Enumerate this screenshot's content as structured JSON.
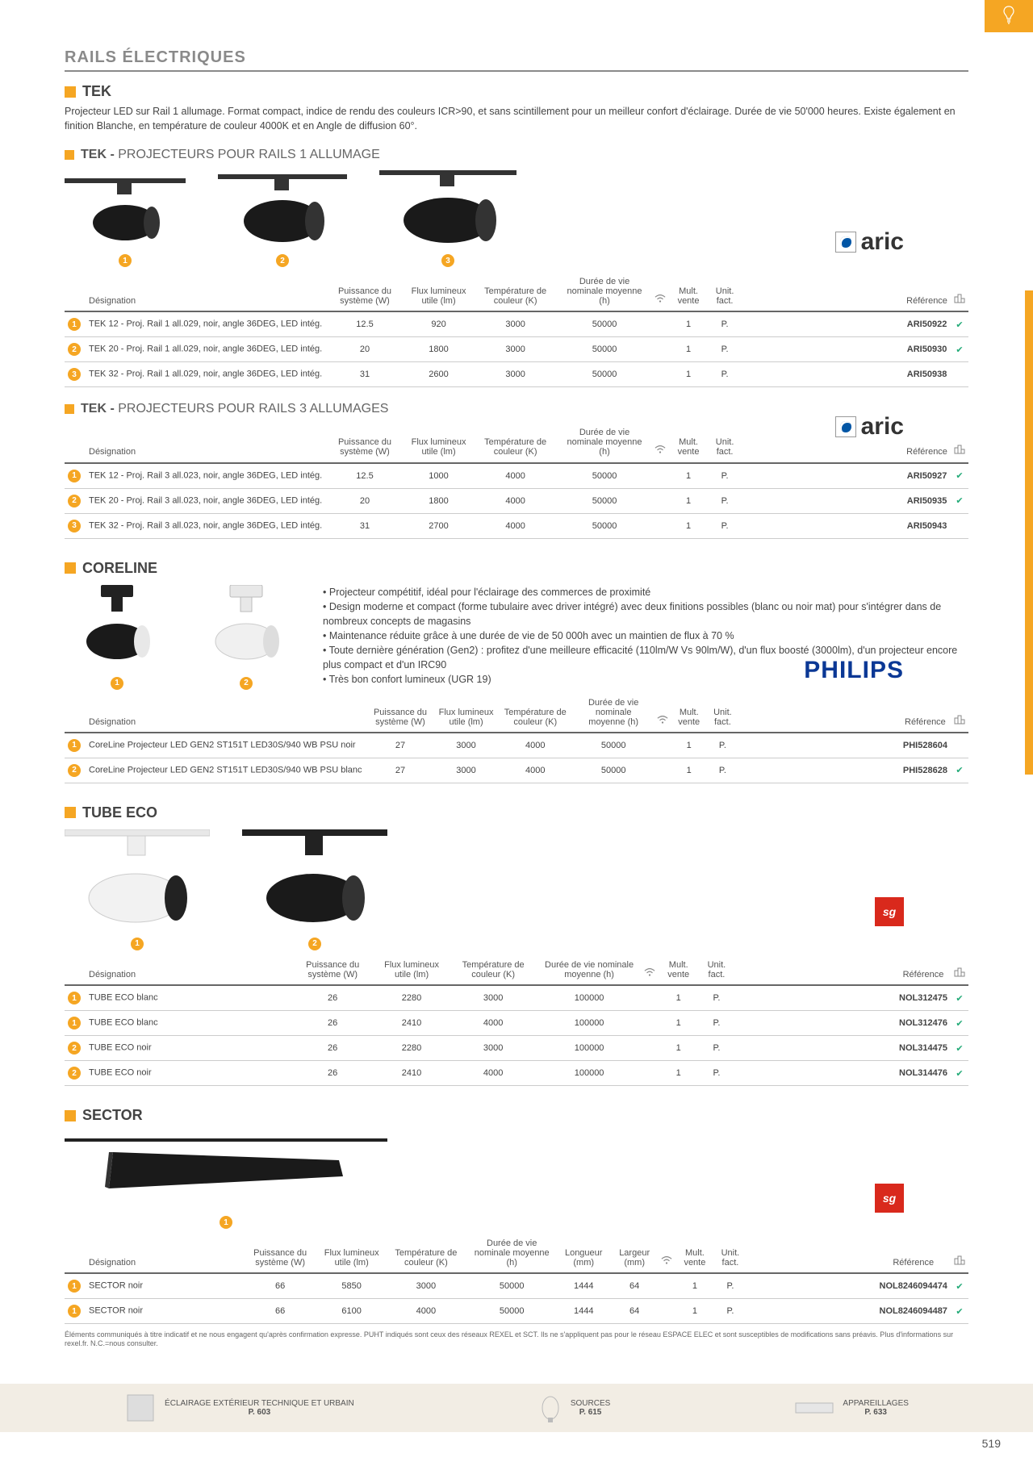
{
  "colors": {
    "accent": "#f5a623",
    "text": "#3a3a3a",
    "line": "#cccccc",
    "philips": "#0b3895",
    "sg": "#d9291c"
  },
  "page_number": "519",
  "header": "RAILS ÉLECTRIQUES",
  "tek": {
    "title": "TEK",
    "desc": "Projecteur LED sur Rail 1 allumage. Format compact, indice de rendu des couleurs ICR>90, et sans scintillement pour un meilleur confort d'éclairage. Durée de vie 50'000 heures. Existe également en finition Blanche, en température de couleur 4000K et en Angle de diffusion 60°."
  },
  "brand_aric": "aric",
  "brand_philips": "PHILIPS",
  "brand_sg": "sg",
  "table_headers": {
    "designation": "Désignation",
    "puissance": "Puissance du système (W)",
    "flux": "Flux lumineux utile (lm)",
    "temp": "Température de couleur (K)",
    "duree": "Durée de vie nominale moyenne (h)",
    "mult": "Mult. vente",
    "unit": "Unit. fact.",
    "ref": "Référence",
    "longueur": "Longueur (mm)",
    "largeur": "Largeur (mm)"
  },
  "tek1": {
    "title_strong": "TEK -",
    "title_rest": "PROJECTEURS POUR RAILS 1 ALLUMAGE",
    "rows": [
      {
        "n": "1",
        "d": "TEK 12 - Proj. Rail 1 all.029, noir, angle 36DEG, LED intég.",
        "p": "12.5",
        "f": "920",
        "t": "3000",
        "dur": "50000",
        "m": "1",
        "u": "P.",
        "ref": "ARI50922",
        "chk": "✔"
      },
      {
        "n": "2",
        "d": "TEK 20 - Proj. Rail 1 all.029, noir, angle 36DEG, LED intég.",
        "p": "20",
        "f": "1800",
        "t": "3000",
        "dur": "50000",
        "m": "1",
        "u": "P.",
        "ref": "ARI50930",
        "chk": "✔"
      },
      {
        "n": "3",
        "d": "TEK 32 - Proj. Rail 1 all.029, noir, angle 36DEG, LED intég.",
        "p": "31",
        "f": "2600",
        "t": "3000",
        "dur": "50000",
        "m": "1",
        "u": "P.",
        "ref": "ARI50938",
        "chk": ""
      }
    ]
  },
  "tek3": {
    "title_strong": "TEK -",
    "title_rest": "PROJECTEURS POUR RAILS 3 ALLUMAGES",
    "rows": [
      {
        "n": "1",
        "d": "TEK 12 - Proj. Rail 3 all.023, noir, angle 36DEG, LED intég.",
        "p": "12.5",
        "f": "1000",
        "t": "4000",
        "dur": "50000",
        "m": "1",
        "u": "P.",
        "ref": "ARI50927",
        "chk": "✔"
      },
      {
        "n": "2",
        "d": "TEK 20 - Proj. Rail 3 all.023, noir, angle 36DEG, LED intég.",
        "p": "20",
        "f": "1800",
        "t": "4000",
        "dur": "50000",
        "m": "1",
        "u": "P.",
        "ref": "ARI50935",
        "chk": "✔"
      },
      {
        "n": "3",
        "d": "TEK 32 - Proj. Rail 3 all.023, noir, angle 36DEG, LED intég.",
        "p": "31",
        "f": "2700",
        "t": "4000",
        "dur": "50000",
        "m": "1",
        "u": "P.",
        "ref": "ARI50943",
        "chk": ""
      }
    ]
  },
  "coreline": {
    "title": "CORELINE",
    "bullets": [
      "Projecteur compétitif, idéal pour l'éclairage des commerces de proximité",
      "Design moderne et compact (forme tubulaire avec driver intégré) avec deux finitions possibles (blanc ou noir mat) pour s'intégrer dans de nombreux concepts de magasins",
      "Maintenance réduite grâce à une durée de vie de 50 000h avec un maintien de flux à 70 %",
      "Toute dernière génération (Gen2) : profitez d'une meilleure efficacité (110lm/W Vs 90lm/W), d'un flux boosté (3000lm), d'un projecteur encore plus compact et d'un IRC90",
      "Très bon confort lumineux (UGR 19)"
    ],
    "rows": [
      {
        "n": "1",
        "d": "CoreLine Projecteur LED GEN2 ST151T LED30S/940 WB PSU noir",
        "p": "27",
        "f": "3000",
        "t": "4000",
        "dur": "50000",
        "m": "1",
        "u": "P.",
        "ref": "PHI528604",
        "chk": ""
      },
      {
        "n": "2",
        "d": "CoreLine Projecteur LED GEN2 ST151T LED30S/940 WB PSU blanc",
        "p": "27",
        "f": "3000",
        "t": "4000",
        "dur": "50000",
        "m": "1",
        "u": "P.",
        "ref": "PHI528628",
        "chk": "✔"
      }
    ]
  },
  "tubeeco": {
    "title": "TUBE ECO",
    "rows": [
      {
        "n": "1",
        "d": "TUBE ECO blanc",
        "p": "26",
        "f": "2280",
        "t": "3000",
        "dur": "100000",
        "m": "1",
        "u": "P.",
        "ref": "NOL312475",
        "chk": "✔"
      },
      {
        "n": "1",
        "d": "TUBE ECO blanc",
        "p": "26",
        "f": "2410",
        "t": "4000",
        "dur": "100000",
        "m": "1",
        "u": "P.",
        "ref": "NOL312476",
        "chk": "✔"
      },
      {
        "n": "2",
        "d": "TUBE ECO noir",
        "p": "26",
        "f": "2280",
        "t": "3000",
        "dur": "100000",
        "m": "1",
        "u": "P.",
        "ref": "NOL314475",
        "chk": "✔"
      },
      {
        "n": "2",
        "d": "TUBE ECO noir",
        "p": "26",
        "f": "2410",
        "t": "4000",
        "dur": "100000",
        "m": "1",
        "u": "P.",
        "ref": "NOL314476",
        "chk": "✔"
      }
    ]
  },
  "sector": {
    "title": "SECTOR",
    "rows": [
      {
        "n": "1",
        "d": "SECTOR noir",
        "p": "66",
        "f": "5850",
        "t": "3000",
        "dur": "50000",
        "lo": "1444",
        "la": "64",
        "m": "1",
        "u": "P.",
        "ref": "NOL8246094474",
        "chk": "✔"
      },
      {
        "n": "1",
        "d": "SECTOR noir",
        "p": "66",
        "f": "6100",
        "t": "4000",
        "dur": "50000",
        "lo": "1444",
        "la": "64",
        "m": "1",
        "u": "P.",
        "ref": "NOL8246094487",
        "chk": "✔"
      }
    ]
  },
  "footnote": "Éléments communiqués à titre indicatif et ne nous engagent qu'après confirmation expresse. PUHT indiqués sont ceux des réseaux REXEL et SCT. Ils ne s'appliquent pas pour le réseau ESPACE ELEC et sont susceptibles de modifications sans préavis. Plus d'informations sur rexel.fr. N.C.=nous consulter.",
  "footer": {
    "a": {
      "t1": "ÉCLAIRAGE EXTÉRIEUR TECHNIQUE ET URBAIN",
      "t2": "P. 603"
    },
    "b": {
      "t1": "SOURCES",
      "t2": "P. 615"
    },
    "c": {
      "t1": "APPAREILLAGES",
      "t2": "P. 633"
    }
  }
}
